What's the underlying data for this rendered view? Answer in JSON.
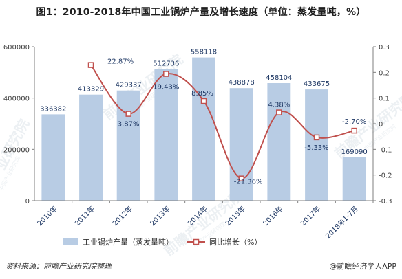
{
  "title": "图1：2010-2018年中国工业锅炉产量及增长速度（单位：蒸发量吨，%）",
  "footer": {
    "source": "资料来源：前瞻产业研究院整理",
    "credit": "@前瞻经济学人APP"
  },
  "watermark": {
    "brand": "前瞻产业研究院",
    "sub": "中国产业研究院"
  },
  "colors": {
    "bar": "#b8cce4",
    "line": "#c0504d",
    "point_fill": "#ffffff",
    "axis": "#7f7f7f",
    "label": "#1f3864"
  },
  "chart_data": {
    "type": "bar",
    "categories": [
      "2010年",
      "2011年",
      "2012年",
      "2013年",
      "2014年",
      "2015年",
      "2016年",
      "2017年",
      "2018年1-7月"
    ],
    "series": [
      {
        "name": "工业锅炉产量（蒸发量吨）",
        "type": "bar",
        "axis": "left",
        "values": [
          336382,
          413329,
          429337,
          512736,
          558118,
          438878,
          458104,
          433675,
          169090
        ],
        "labels": [
          "336382",
          "413329",
          "429337",
          "512736",
          "558118",
          "438878",
          "458104",
          "433675",
          "169090"
        ]
      },
      {
        "name": "同比增长（%）",
        "type": "line",
        "axis": "right",
        "values": [
          null,
          0.2287,
          0.0387,
          0.1943,
          0.0885,
          -0.2136,
          0.0438,
          -0.0533,
          -0.027
        ],
        "labels": [
          "",
          "22.87%",
          "3.87%",
          "19.43%",
          "8.85%",
          "-21.36%",
          "4.38%",
          "-5.33%",
          "-2.70%"
        ]
      }
    ],
    "y_left": {
      "min": 0,
      "max": 600000,
      "ticks": [
        0,
        200000,
        400000,
        600000
      ]
    },
    "y_right": {
      "min": -0.3,
      "max": 0.3,
      "ticks": [
        -0.3,
        -0.2,
        -0.1,
        0,
        0.1,
        0.2,
        0.3
      ],
      "tick_labels": [
        "-0.3",
        "-0.2",
        "-0.1",
        "0",
        "0.1",
        "0.2",
        "0.3"
      ]
    },
    "grid": false,
    "legend": {
      "position": "bottom-left",
      "items": [
        "工业锅炉产量（蒸发量吨）",
        "同比增长（%）"
      ]
    }
  }
}
